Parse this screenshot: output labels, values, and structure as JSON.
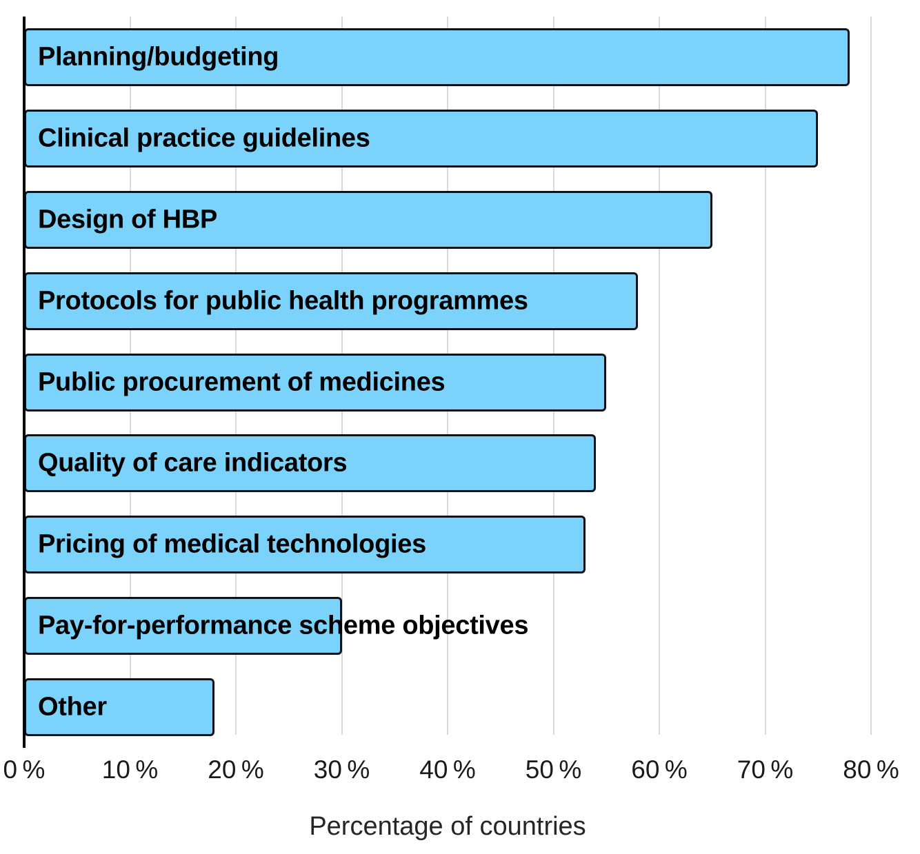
{
  "chart_data": {
    "type": "bar",
    "orientation": "horizontal",
    "title": "",
    "xlabel": "Percentage of countries",
    "ylabel": "",
    "xlim": [
      0,
      80
    ],
    "grid": "vertical-only",
    "legend": false,
    "categories": [
      "Planning/budgeting",
      "Clinical practice guidelines",
      "Design of HBP",
      "Protocols for public health programmes",
      "Public procurement of medicines",
      "Quality of care indicators",
      "Pricing of medical technologies",
      "Pay-for-performance scheme objectives",
      "Other"
    ],
    "values": [
      78,
      75,
      65,
      58,
      55,
      54,
      53,
      30,
      18
    ],
    "tick_values": [
      0,
      10,
      20,
      30,
      40,
      50,
      60,
      70,
      80
    ],
    "tick_labels": [
      "0 %",
      "10 %",
      "20 %",
      "30 %",
      "40 %",
      "50 %",
      "60 %",
      "70 %",
      "80 %"
    ],
    "colors": {
      "bar_fill": "#7BD3FB",
      "bar_border": "#0D1117",
      "gridline": "#D9D9D9",
      "axis_line": "#000000",
      "label_text": "#000000",
      "tick_text": "#1A1A1A"
    }
  }
}
